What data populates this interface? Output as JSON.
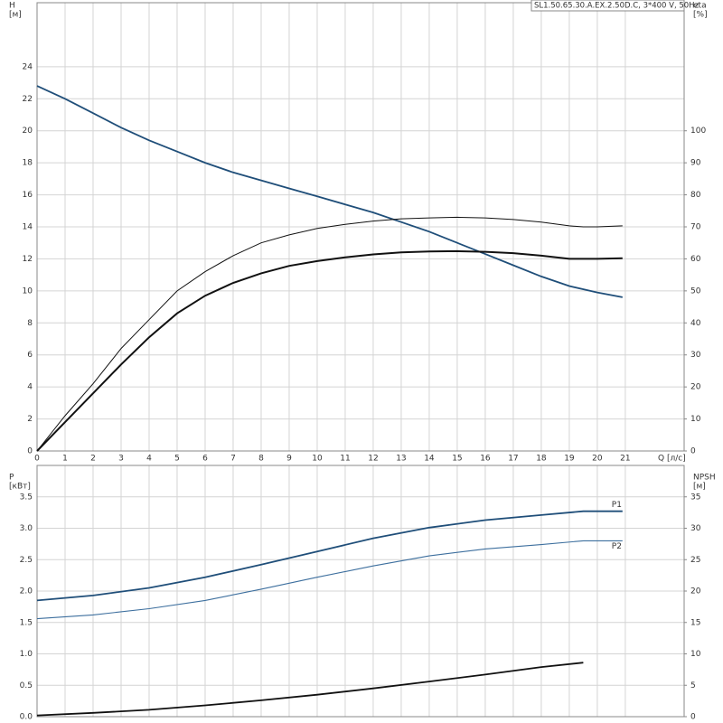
{
  "chart_data": [
    {
      "type": "line",
      "title": "SL1.50.65.30.A.EX.2.50D.C, 3*400 V, 50Hz",
      "y_label": "H",
      "y_unit": "[м]",
      "y2_label": "eta",
      "y2_unit": "[%]",
      "x_label": "Q [л/с]",
      "xlim": [
        0,
        23.1
      ],
      "xticks": [
        0,
        1,
        2,
        3,
        4,
        5,
        6,
        7,
        8,
        9,
        10,
        11,
        12,
        13,
        14,
        15,
        16,
        17,
        18,
        19,
        20,
        21
      ],
      "ylim": [
        0,
        28
      ],
      "yticks": [
        0,
        2,
        4,
        6,
        8,
        10,
        12,
        14,
        16,
        18,
        20,
        22,
        24
      ],
      "y2lim": [
        0,
        140
      ],
      "y2ticks": [
        0,
        10,
        20,
        30,
        40,
        50,
        60,
        70,
        80,
        90,
        100
      ],
      "grid": true,
      "series": [
        {
          "color": "#1f4e79",
          "width": 1.8,
          "x": [
            0,
            1,
            2,
            3,
            4,
            5,
            6,
            7,
            8,
            9,
            10,
            11,
            12,
            13,
            14,
            15,
            16,
            17,
            18,
            19,
            20,
            20.9
          ],
          "values": [
            22.8,
            22,
            21.1,
            20.2,
            19.4,
            18.7,
            18.0,
            17.4,
            16.9,
            16.4,
            15.9,
            15.4,
            14.9,
            14.3,
            13.7,
            13.0,
            12.3,
            11.6,
            10.9,
            10.3,
            9.9,
            9.6
          ]
        },
        {
          "color": "#111111",
          "width": 1,
          "axis": "y2",
          "x": [
            0,
            1,
            2,
            3,
            4,
            5,
            6,
            7,
            8,
            9,
            10,
            11,
            12,
            13,
            14,
            15,
            16,
            17,
            18,
            19,
            19.5,
            20,
            20.9
          ],
          "values": [
            0,
            11,
            21,
            32,
            41,
            50,
            56,
            61,
            65,
            67.5,
            69.5,
            70.8,
            71.8,
            72.5,
            72.8,
            73,
            72.8,
            72.3,
            71.5,
            70.3,
            70,
            70,
            70.3
          ]
        },
        {
          "color": "#111111",
          "width": 2,
          "axis": "y2",
          "x": [
            0,
            1,
            2,
            3,
            4,
            5,
            6,
            7,
            8,
            9,
            10,
            11,
            12,
            13,
            14,
            15,
            16,
            17,
            18,
            19,
            19.5,
            20,
            20.9
          ],
          "values": [
            0,
            9,
            18,
            27,
            35.5,
            43,
            48.5,
            52.5,
            55.5,
            57.8,
            59.3,
            60.5,
            61.4,
            62,
            62.3,
            62.4,
            62.2,
            61.8,
            61,
            60,
            60,
            60,
            60.2
          ]
        }
      ]
    },
    {
      "type": "line",
      "y_label": "P",
      "y_unit": "[кВт]",
      "y2_label": "NPSH",
      "y2_unit": "[м]",
      "xlim": [
        0,
        23.1
      ],
      "ylim": [
        0,
        4
      ],
      "yticks": [
        {
          "value": 0,
          "label": "0.0"
        },
        {
          "value": 0.5,
          "label": "0.5"
        },
        {
          "value": 1,
          "label": "1.0"
        },
        {
          "value": 1.5,
          "label": "1.5"
        },
        {
          "value": 2,
          "label": "2.0"
        },
        {
          "value": 2.5,
          "label": "2.5"
        },
        {
          "value": 3,
          "label": "3.0"
        },
        {
          "value": 3.5,
          "label": "3.5"
        }
      ],
      "y2lim": [
        0,
        40
      ],
      "y2ticks": [
        0,
        5,
        10,
        15,
        20,
        25,
        30,
        35
      ],
      "grid": true,
      "series": [
        {
          "name": "P1",
          "color": "#1f4e79",
          "width": 1.8,
          "x": [
            0,
            2,
            4,
            6,
            8,
            10,
            12,
            14,
            16,
            18,
            19.5,
            20.9
          ],
          "values": [
            1.85,
            1.93,
            2.05,
            2.22,
            2.42,
            2.63,
            2.84,
            3.01,
            3.13,
            3.21,
            3.27,
            3.27
          ]
        },
        {
          "name": "P2",
          "color": "#3d6f9e",
          "width": 1.1,
          "x": [
            0,
            2,
            4,
            6,
            8,
            10,
            12,
            14,
            16,
            18,
            19.5,
            20.9
          ],
          "values": [
            1.56,
            1.62,
            1.72,
            1.85,
            2.03,
            2.22,
            2.4,
            2.56,
            2.67,
            2.74,
            2.8,
            2.8
          ]
        },
        {
          "color": "#111111",
          "width": 1.8,
          "axis": "y2",
          "x": [
            0,
            2,
            4,
            6,
            8,
            10,
            12,
            14,
            16,
            18,
            19.5
          ],
          "values": [
            0.2,
            0.6,
            1.1,
            1.8,
            2.6,
            3.5,
            4.5,
            5.6,
            6.7,
            7.9,
            8.6
          ]
        }
      ]
    }
  ]
}
